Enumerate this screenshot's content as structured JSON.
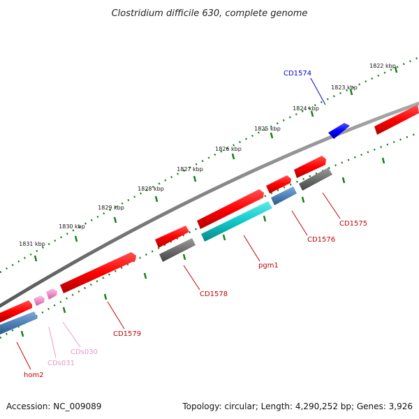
{
  "title": "Clostridium difficile 630, complete genome",
  "accession": "Accession: NC_009089",
  "summary": "Topology: circular; Length: 4,290,252 bp; Genes: 3,926",
  "colors": {
    "backbone": "#808080",
    "cds_red": "#ff0000",
    "cds_dark": "#6e6e6e",
    "cds_blue": "#0000ff",
    "cds_steel": "#4f82b8",
    "cds_cyan": "#10c8c8",
    "cds_pink": "#f090c8",
    "tick": "#108010",
    "label_red": "#c00000",
    "label_blue": "#0000cc",
    "label_pink": "#e898c8"
  },
  "kbp_labels": [
    "1822 kbp",
    "1823 kbp",
    "1824 kbp",
    "1825 kbp",
    "1826 kbp",
    "1827 kbp",
    "1828 kbp",
    "1829 kbp",
    "1830 kbp",
    "1831 kbp"
  ],
  "genes": [
    {
      "name": "CD1574",
      "color": "blue"
    },
    {
      "name": "CD1575",
      "color": "red"
    },
    {
      "name": "CD1576",
      "color": "red"
    },
    {
      "name": "pgm1",
      "color": "red"
    },
    {
      "name": "CD1578",
      "color": "red"
    },
    {
      "name": "CD1579",
      "color": "red"
    },
    {
      "name": "CDs030",
      "color": "pink"
    },
    {
      "name": "CDs031",
      "color": "pink"
    },
    {
      "name": "hom2",
      "color": "red"
    }
  ]
}
